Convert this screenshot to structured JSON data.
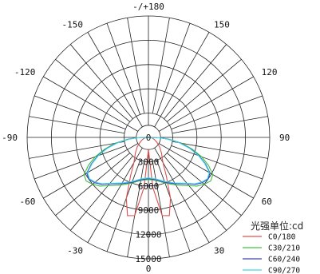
{
  "chart_data": {
    "type": "polar",
    "unit_label": "光强单位:cd",
    "angle_labels": [
      "-/+180",
      "150",
      "120",
      "90",
      "60",
      "30",
      "0",
      "-30",
      "-60",
      "-90",
      "-120",
      "-150"
    ],
    "angle_values": [
      180,
      150,
      120,
      90,
      60,
      30,
      0,
      -30,
      -60,
      -90,
      -120,
      -150
    ],
    "radial_labels": [
      "0",
      "3000",
      "6000",
      "9000",
      "12000",
      "15000"
    ],
    "radial_values": [
      0,
      3000,
      6000,
      9000,
      12000,
      15000
    ],
    "rmax": 15000,
    "grid": true,
    "legend_position": "bottom-right",
    "series": [
      {
        "name": "C0/180",
        "color": "#e05050",
        "points": [
          [
            -90,
            0
          ],
          [
            -85,
            300
          ],
          [
            -80,
            500
          ],
          [
            -70,
            800
          ],
          [
            -60,
            1200
          ],
          [
            -50,
            1800
          ],
          [
            -40,
            2500
          ],
          [
            -30,
            3600
          ],
          [
            -25,
            5200
          ],
          [
            -20,
            8000
          ],
          [
            -15,
            10000
          ],
          [
            -10,
            9800
          ],
          [
            -5,
            6200
          ],
          [
            0,
            1500
          ],
          [
            5,
            6200
          ],
          [
            10,
            9800
          ],
          [
            15,
            10000
          ],
          [
            20,
            8000
          ],
          [
            25,
            5200
          ],
          [
            30,
            3600
          ],
          [
            40,
            2500
          ],
          [
            50,
            1800
          ],
          [
            60,
            1200
          ],
          [
            70,
            800
          ],
          [
            80,
            500
          ],
          [
            85,
            300
          ],
          [
            90,
            0
          ]
        ]
      },
      {
        "name": "C30/210",
        "color": "#40c040",
        "points": [
          [
            -90,
            0
          ],
          [
            -88,
            1500
          ],
          [
            -85,
            2500
          ],
          [
            -80,
            4200
          ],
          [
            -75,
            5600
          ],
          [
            -70,
            7000
          ],
          [
            -65,
            8200
          ],
          [
            -60,
            9200
          ],
          [
            -55,
            9400
          ],
          [
            -50,
            9000
          ],
          [
            -45,
            8500
          ],
          [
            -40,
            7800
          ],
          [
            -30,
            6800
          ],
          [
            -20,
            6000
          ],
          [
            -10,
            5400
          ],
          [
            0,
            5200
          ],
          [
            10,
            5400
          ],
          [
            20,
            6000
          ],
          [
            30,
            6800
          ],
          [
            40,
            7800
          ],
          [
            45,
            8500
          ],
          [
            50,
            9000
          ],
          [
            55,
            9400
          ],
          [
            60,
            9200
          ],
          [
            65,
            8200
          ],
          [
            70,
            7000
          ],
          [
            75,
            5600
          ],
          [
            80,
            4200
          ],
          [
            85,
            2500
          ],
          [
            88,
            1500
          ],
          [
            90,
            0
          ]
        ]
      },
      {
        "name": "C60/240",
        "color": "#3a40d0",
        "points": [
          [
            -90,
            0
          ],
          [
            -88,
            1400
          ],
          [
            -85,
            2400
          ],
          [
            -80,
            4000
          ],
          [
            -75,
            5400
          ],
          [
            -70,
            6700
          ],
          [
            -65,
            7800
          ],
          [
            -60,
            8800
          ],
          [
            -55,
            9000
          ],
          [
            -50,
            8700
          ],
          [
            -45,
            8200
          ],
          [
            -40,
            7500
          ],
          [
            -30,
            6600
          ],
          [
            -20,
            5900
          ],
          [
            -10,
            5300
          ],
          [
            0,
            5100
          ],
          [
            10,
            5300
          ],
          [
            20,
            5900
          ],
          [
            30,
            6600
          ],
          [
            40,
            7500
          ],
          [
            45,
            8200
          ],
          [
            50,
            8700
          ],
          [
            55,
            9000
          ],
          [
            60,
            8800
          ],
          [
            65,
            7800
          ],
          [
            70,
            6700
          ],
          [
            75,
            5400
          ],
          [
            80,
            4000
          ],
          [
            85,
            2400
          ],
          [
            88,
            1400
          ],
          [
            90,
            0
          ]
        ]
      },
      {
        "name": "C90/270",
        "color": "#40d8e8",
        "points": [
          [
            -90,
            0
          ],
          [
            -88,
            1300
          ],
          [
            -85,
            2300
          ],
          [
            -80,
            3900
          ],
          [
            -75,
            5300
          ],
          [
            -70,
            6600
          ],
          [
            -65,
            7700
          ],
          [
            -60,
            8700
          ],
          [
            -55,
            8900
          ],
          [
            -50,
            8600
          ],
          [
            -45,
            8100
          ],
          [
            -40,
            7400
          ],
          [
            -30,
            6500
          ],
          [
            -20,
            5800
          ],
          [
            -10,
            5200
          ],
          [
            0,
            5000
          ],
          [
            10,
            5200
          ],
          [
            20,
            5800
          ],
          [
            30,
            6500
          ],
          [
            40,
            7400
          ],
          [
            45,
            8100
          ],
          [
            50,
            8600
          ],
          [
            55,
            8900
          ],
          [
            60,
            8700
          ],
          [
            65,
            7700
          ],
          [
            70,
            6600
          ],
          [
            75,
            5300
          ],
          [
            80,
            3900
          ],
          [
            85,
            2300
          ],
          [
            88,
            1300
          ],
          [
            90,
            0
          ]
        ]
      }
    ]
  }
}
